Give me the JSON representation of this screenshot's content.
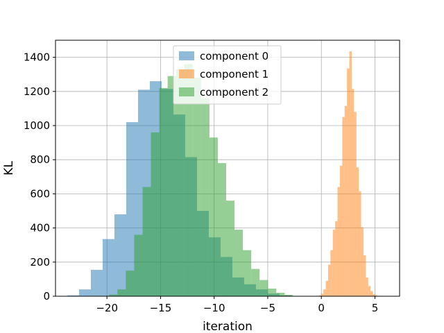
{
  "chart_data": {
    "type": "histogram",
    "xlabel": "iteration",
    "ylabel": "KL",
    "xlim": [
      -24.8,
      7.3
    ],
    "ylim": [
      0,
      1500
    ],
    "xticks": [
      -20,
      -15,
      -10,
      -5,
      0,
      5
    ],
    "xtick_labels": [
      "−20",
      "−15",
      "−10",
      "−5",
      "0",
      "5"
    ],
    "yticks": [
      0,
      200,
      400,
      600,
      800,
      1000,
      1200,
      1400
    ],
    "ytick_labels": [
      "0",
      "200",
      "400",
      "600",
      "800",
      "1000",
      "1200",
      "1400"
    ],
    "grid": true,
    "legend_position": "top-center",
    "series": [
      {
        "name": "component 0",
        "color": "#1f77b4",
        "alpha": 0.5,
        "bin_width": 1.1,
        "bin_start": -23.7,
        "values": [
          5,
          40,
          155,
          335,
          480,
          1020,
          1210,
          1260,
          1215,
          1065,
          815,
          500,
          345,
          230,
          110,
          70,
          40,
          15,
          5
        ]
      },
      {
        "name": "component 1",
        "color": "#ff7f0e",
        "alpha": 0.5,
        "bin_width": 0.22,
        "bin_start": -0.25,
        "values": [
          5,
          15,
          40,
          90,
          185,
          270,
          390,
          440,
          640,
          765,
          1050,
          1115,
          1335,
          1435,
          1215,
          1080,
          755,
          615,
          405,
          240,
          110,
          60,
          30,
          12,
          5,
          2
        ]
      },
      {
        "name": "component 2",
        "color": "#2ca02c",
        "alpha": 0.5,
        "bin_width": 0.78,
        "bin_start": -19.8,
        "values": [
          10,
          40,
          150,
          360,
          640,
          960,
          1220,
          1290,
          1330,
          1360,
          1280,
          1160,
          930,
          780,
          560,
          390,
          270,
          160,
          95,
          45,
          20,
          8
        ]
      }
    ]
  }
}
